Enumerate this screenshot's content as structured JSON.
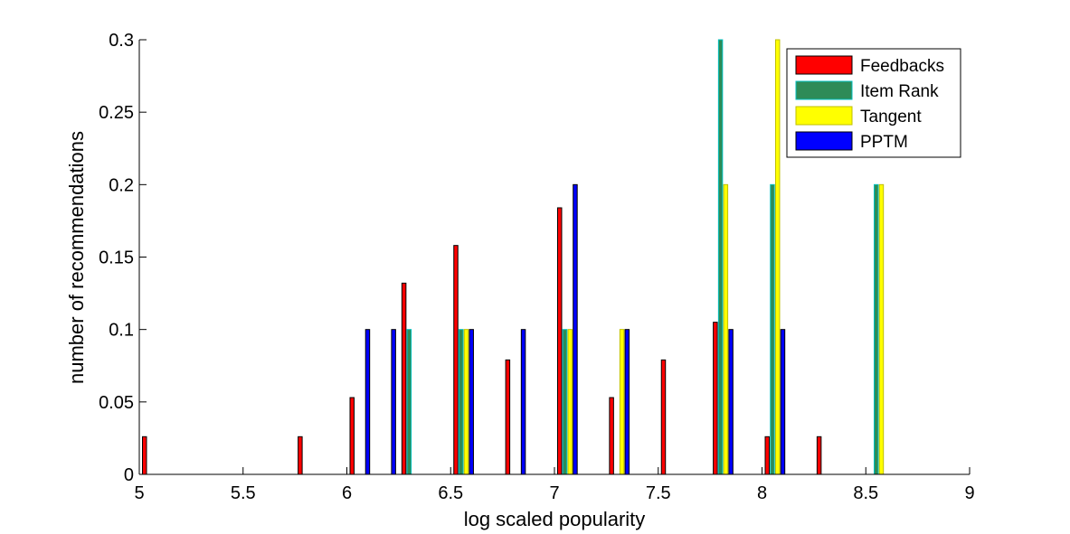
{
  "chart_data": {
    "type": "bar",
    "xlabel": "log scaled popularity",
    "ylabel": "number of recommendations",
    "xlim": [
      5,
      9
    ],
    "ylim": [
      0,
      0.3
    ],
    "xticks": [
      "5",
      "5.5",
      "6",
      "6.5",
      "7",
      "7.5",
      "8",
      "8.5",
      "9"
    ],
    "yticks": [
      "0",
      "0.05",
      "0.1",
      "0.15",
      "0.2",
      "0.25",
      "0.3"
    ],
    "grid": false,
    "legend_position": "top-right",
    "bin_centers": [
      5.0625,
      5.1875,
      5.3125,
      5.4375,
      5.5625,
      5.6875,
      5.8125,
      5.9375,
      6.0625,
      6.1875,
      6.3125,
      6.4375,
      6.5625,
      6.6875,
      6.8125,
      6.9375,
      7.0625,
      7.1875,
      7.3125,
      7.4375,
      7.5625,
      7.6875,
      7.8125,
      7.9375,
      8.0625,
      8.1875,
      8.3125,
      8.4375,
      8.5625,
      8.6875,
      8.8125,
      8.9375
    ],
    "series": [
      {
        "name": "Feedbacks",
        "color": "#ff0000",
        "values": [
          0.026,
          0,
          0,
          0,
          0,
          0,
          0.026,
          0,
          0.053,
          0,
          0.132,
          0,
          0.158,
          0,
          0.079,
          0,
          0.184,
          0,
          0.053,
          0,
          0.079,
          0,
          0.105,
          0,
          0.026,
          0,
          0.026,
          0,
          0,
          0,
          0,
          0
        ]
      },
      {
        "name": "Item Rank",
        "color": "#2e8b57",
        "values": [
          0,
          0,
          0,
          0,
          0,
          0,
          0,
          0,
          0,
          0,
          0.1,
          0,
          0.1,
          0,
          0,
          0,
          0.1,
          0,
          0,
          0,
          0,
          0,
          0.3,
          0,
          0.2,
          0,
          0,
          0,
          0.2,
          0,
          0,
          0
        ]
      },
      {
        "name": "Tangent",
        "color": "#ffff00",
        "values": [
          0,
          0,
          0,
          0,
          0,
          0,
          0,
          0,
          0,
          0,
          0,
          0,
          0.1,
          0,
          0,
          0,
          0.1,
          0,
          0.1,
          0,
          0,
          0,
          0.2,
          0,
          0.3,
          0,
          0,
          0,
          0.2,
          0,
          0,
          0
        ]
      },
      {
        "name": "PPTM",
        "color": "#0000ff",
        "values": [
          0,
          0,
          0,
          0,
          0,
          0,
          0,
          0,
          0.1,
          0.1,
          0,
          0,
          0.1,
          0,
          0.1,
          0,
          0.2,
          0,
          0.1,
          0,
          0,
          0,
          0.1,
          0,
          0.1,
          0,
          0,
          0,
          0,
          0,
          0,
          0
        ]
      }
    ]
  }
}
